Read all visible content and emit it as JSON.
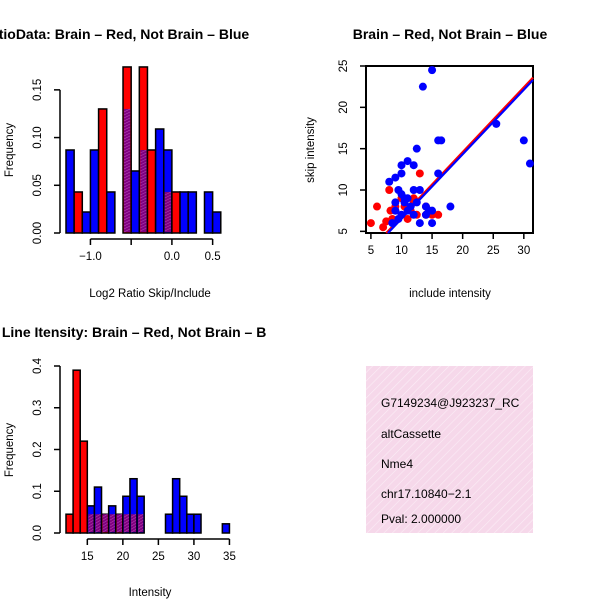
{
  "chart_data": [
    {
      "type": "bar",
      "title": "RatioData: Brain – Red, Not Brain – Blue",
      "xlabel": "Log2 Ratio Skip/Include",
      "ylabel": "Frequency",
      "xlim": [
        -1.3,
        0.75
      ],
      "ylim": [
        0,
        0.175
      ],
      "xticks": [
        -1.0,
        -0.5,
        0.0,
        0.5
      ],
      "xtick_labels": [
        "−1.0",
        "",
        "0.0",
        "0.5"
      ],
      "yticks": [
        0.0,
        0.05,
        0.1,
        0.15
      ],
      "ytick_labels": [
        "0.00",
        "0.05",
        "0.10",
        "0.15"
      ],
      "bin_start": -1.3,
      "bin_width": 0.1,
      "series": [
        {
          "name": "Brain",
          "color": "#ff0000",
          "values": [
            0,
            0.043,
            0,
            0,
            0.13,
            0,
            0,
            0.174,
            0,
            0.174,
            0.087,
            0,
            0.043,
            0.043,
            0,
            0,
            0,
            0,
            0,
            0
          ]
        },
        {
          "name": "Not Brain",
          "color": "#0000ff",
          "values": [
            0.087,
            0,
            0.022,
            0.087,
            0,
            0.043,
            0,
            0.13,
            0.065,
            0.087,
            0,
            0.109,
            0.087,
            0,
            0.043,
            0.043,
            0,
            0.043,
            0.022,
            0
          ]
        }
      ],
      "overlap_color": "#800080"
    },
    {
      "type": "scatter",
      "title": "Brain – Red, Not Brain – Blue",
      "xlabel": "include intensity",
      "ylabel": "skip intensity",
      "xlim": [
        4.2,
        31.5
      ],
      "ylim": [
        4.8,
        25
      ],
      "xticks": [
        5,
        10,
        15,
        20,
        25,
        30
      ],
      "yticks": [
        5,
        10,
        15,
        20,
        25
      ],
      "series": [
        {
          "name": "Brain",
          "color": "#ff0000",
          "points": [
            [
              5,
              6
            ],
            [
              6,
              8
            ],
            [
              7,
              5.5
            ],
            [
              7.5,
              6.2
            ],
            [
              8,
              10
            ],
            [
              8.2,
              7.5
            ],
            [
              8.5,
              6.5
            ],
            [
              9,
              7.5
            ],
            [
              9,
              8
            ],
            [
              10,
              9
            ],
            [
              10.5,
              8
            ],
            [
              11,
              6.5
            ],
            [
              11.5,
              7.5
            ],
            [
              12,
              9
            ],
            [
              12,
              8.5
            ],
            [
              12.5,
              7
            ],
            [
              13,
              12
            ],
            [
              14,
              8
            ],
            [
              14,
              7
            ],
            [
              15,
              7
            ],
            [
              16,
              7
            ]
          ]
        },
        {
          "name": "Not Brain",
          "color": "#0000ff",
          "points": [
            [
              8,
              11
            ],
            [
              8.5,
              6
            ],
            [
              9,
              7.5
            ],
            [
              9,
              8.5
            ],
            [
              9,
              11.5
            ],
            [
              9.5,
              6.5
            ],
            [
              9.5,
              10
            ],
            [
              10,
              9.5
            ],
            [
              10,
              12
            ],
            [
              10,
              7
            ],
            [
              10.5,
              8.5
            ],
            [
              10.5,
              9
            ],
            [
              10,
              13
            ],
            [
              11,
              13.5
            ],
            [
              11,
              9
            ],
            [
              11,
              7.5
            ],
            [
              11.5,
              8
            ],
            [
              12,
              13
            ],
            [
              12,
              10
            ],
            [
              12,
              7
            ],
            [
              12.5,
              15
            ],
            [
              12.5,
              8.5
            ],
            [
              13,
              6
            ],
            [
              13,
              10
            ],
            [
              13.5,
              22.5
            ],
            [
              14,
              7
            ],
            [
              14,
              8
            ],
            [
              14.5,
              7.5
            ],
            [
              15,
              6
            ],
            [
              15,
              7.5
            ],
            [
              15,
              24.5
            ],
            [
              16,
              12
            ],
            [
              16,
              16
            ],
            [
              16.5,
              16
            ],
            [
              18,
              8
            ],
            [
              25.5,
              18
            ],
            [
              30,
              16
            ],
            [
              31,
              13.2
            ]
          ]
        }
      ],
      "fit_lines": [
        {
          "name": "Brain fit",
          "color": "#ff0000",
          "from": [
            4.2,
            2.2
          ],
          "to": [
            31.5,
            23.6
          ]
        },
        {
          "name": "Not Brain fit",
          "color": "#0000ff",
          "from": [
            4.2,
            2.0
          ],
          "to": [
            31.5,
            23.3
          ]
        }
      ]
    },
    {
      "type": "bar",
      "title": "Exon Line Itensity: Brain – Red, Not Brain – B",
      "xlabel": "Intensity",
      "ylabel": "Frequency",
      "xlim": [
        12,
        35.5
      ],
      "ylim": [
        0,
        0.4
      ],
      "xticks": [
        15,
        20,
        25,
        30,
        35
      ],
      "yticks": [
        0.0,
        0.1,
        0.2,
        0.3,
        0.4
      ],
      "ytick_labels": [
        "0.0",
        "0.1",
        "0.2",
        "0.3",
        "0.4"
      ],
      "bin_start": 12,
      "bin_width": 1,
      "series": [
        {
          "name": "Brain",
          "color": "#ff0000",
          "values": [
            0.045,
            0.39,
            0.22,
            0.045,
            0.045,
            0.045,
            0.045,
            0.045,
            0.045,
            0.045,
            0.045,
            0,
            0,
            0,
            0,
            0,
            0,
            0,
            0,
            0,
            0,
            0,
            0
          ]
        },
        {
          "name": "Not Brain",
          "color": "#0000ff",
          "values": [
            0,
            0,
            0,
            0.065,
            0.11,
            0.045,
            0.065,
            0.045,
            0.088,
            0.13,
            0.088,
            0,
            0,
            0,
            0.045,
            0.13,
            0.088,
            0.045,
            0.045,
            0,
            0,
            0,
            0.022
          ]
        }
      ],
      "overlap_color": "#800080"
    }
  ],
  "info_box": {
    "line1": "G7149234@J923237_RC",
    "line2": "altCassette",
    "line3": "Nme4",
    "line4": "chr17.10840−2.1",
    "pval": "Pval: 2.000000",
    "pval_color": "#8b0000",
    "background_color": "#f6d8ea"
  }
}
